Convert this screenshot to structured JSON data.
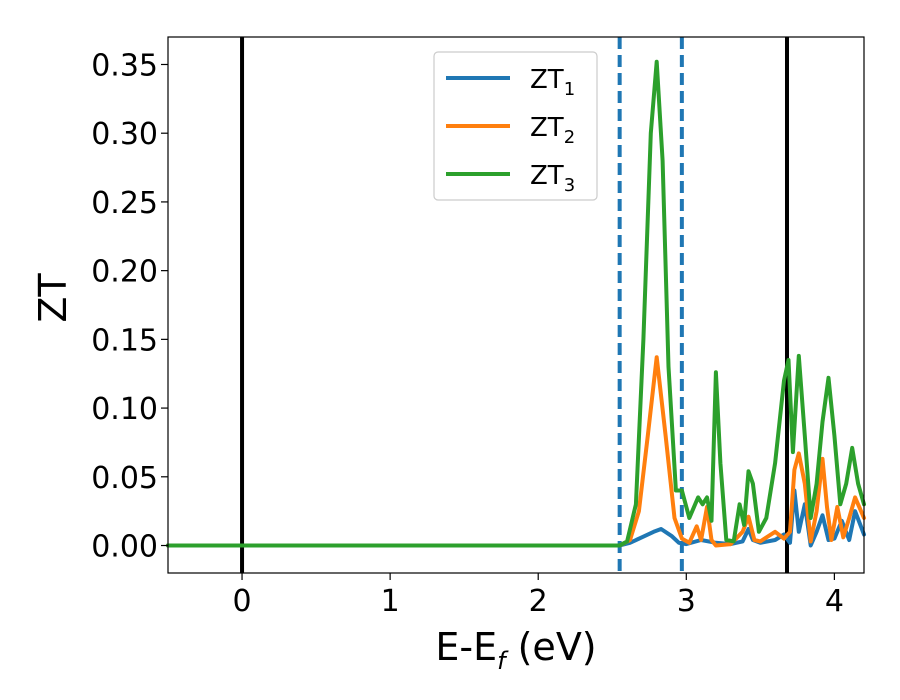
{
  "chart_data": {
    "type": "line",
    "xlabel_main": "E-E",
    "xlabel_sub": "f",
    "xlabel_unit": " (eV)",
    "ylabel": "ZT",
    "xlim": [
      -0.5,
      4.2
    ],
    "ylim": [
      -0.02,
      0.37
    ],
    "xticks": [
      0,
      1,
      2,
      3,
      4
    ],
    "yticks": [
      0.0,
      0.05,
      0.1,
      0.15,
      0.2,
      0.25,
      0.3,
      0.35
    ],
    "ytick_labels": [
      "0.00",
      "0.05",
      "0.10",
      "0.15",
      "0.20",
      "0.25",
      "0.30",
      "0.35"
    ],
    "vlines_solid": [
      0.0,
      3.68
    ],
    "vlines_dashed": [
      2.55,
      2.97
    ],
    "legend": {
      "location": "upper center"
    },
    "series": [
      {
        "label": "ZT",
        "sub": "1",
        "color": "#1f77b4",
        "x": [
          -0.5,
          2.55,
          2.62,
          2.7,
          2.78,
          2.83,
          2.9,
          2.95,
          3.0,
          3.1,
          3.2,
          3.3,
          3.38,
          3.42,
          3.45,
          3.5,
          3.6,
          3.66,
          3.7,
          3.73,
          3.76,
          3.8,
          3.84,
          3.88,
          3.92,
          3.96,
          4.0,
          4.05,
          4.1,
          4.14,
          4.2
        ],
        "y": [
          0.0,
          0.0,
          0.002,
          0.006,
          0.01,
          0.012,
          0.007,
          0.002,
          0.001,
          0.004,
          0.002,
          0.001,
          0.003,
          0.012,
          0.004,
          0.002,
          0.004,
          0.008,
          0.002,
          0.04,
          0.01,
          0.03,
          0.0,
          0.01,
          0.022,
          0.004,
          0.005,
          0.018,
          0.004,
          0.025,
          0.008
        ]
      },
      {
        "label": "ZT",
        "sub": "2",
        "color": "#ff7f0e",
        "x": [
          -0.5,
          2.55,
          2.62,
          2.68,
          2.74,
          2.8,
          2.86,
          2.92,
          2.97,
          3.02,
          3.07,
          3.1,
          3.14,
          3.17,
          3.2,
          3.3,
          3.38,
          3.42,
          3.46,
          3.5,
          3.6,
          3.66,
          3.7,
          3.73,
          3.76,
          3.8,
          3.84,
          3.88,
          3.92,
          3.95,
          3.98,
          4.02,
          4.06,
          4.1,
          4.14,
          4.2
        ],
        "y": [
          0.0,
          0.0,
          0.004,
          0.025,
          0.08,
          0.137,
          0.08,
          0.02,
          0.005,
          0.002,
          0.014,
          0.004,
          0.028,
          0.004,
          0.0,
          0.001,
          0.01,
          0.021,
          0.004,
          0.003,
          0.01,
          0.005,
          0.01,
          0.055,
          0.067,
          0.045,
          0.003,
          0.025,
          0.063,
          0.028,
          0.004,
          0.028,
          0.006,
          0.02,
          0.035,
          0.02
        ]
      },
      {
        "label": "ZT",
        "sub": "3",
        "color": "#2ca02c",
        "x": [
          -0.5,
          2.55,
          2.6,
          2.66,
          2.71,
          2.76,
          2.8,
          2.84,
          2.88,
          2.93,
          2.97,
          3.02,
          3.08,
          3.11,
          3.14,
          3.17,
          3.2,
          3.23,
          3.27,
          3.32,
          3.36,
          3.39,
          3.42,
          3.45,
          3.49,
          3.54,
          3.6,
          3.66,
          3.69,
          3.72,
          3.76,
          3.8,
          3.84,
          3.88,
          3.92,
          3.96,
          4.0,
          4.04,
          4.08,
          4.12,
          4.16,
          4.2
        ],
        "y": [
          0.0,
          0.0,
          0.003,
          0.03,
          0.15,
          0.3,
          0.352,
          0.28,
          0.13,
          0.04,
          0.04,
          0.02,
          0.035,
          0.03,
          0.035,
          0.018,
          0.126,
          0.06,
          0.004,
          0.003,
          0.03,
          0.015,
          0.054,
          0.045,
          0.01,
          0.02,
          0.06,
          0.12,
          0.135,
          0.068,
          0.138,
          0.08,
          0.02,
          0.045,
          0.09,
          0.122,
          0.08,
          0.03,
          0.045,
          0.071,
          0.045,
          0.03
        ]
      }
    ]
  }
}
